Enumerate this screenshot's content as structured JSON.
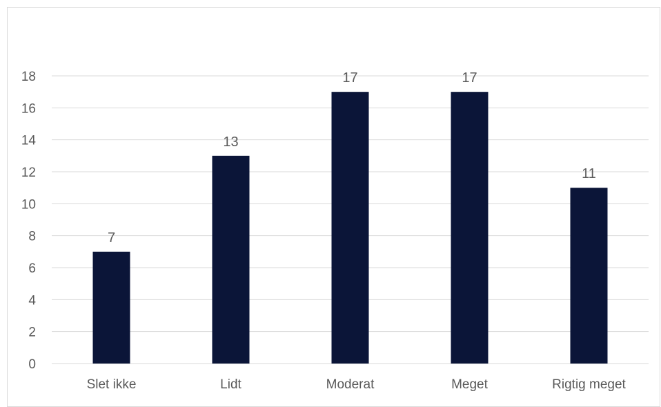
{
  "chart_data": {
    "type": "bar",
    "categories": [
      "Slet ikke",
      "Lidt",
      "Moderat",
      "Meget",
      "Rigtig meget"
    ],
    "values": [
      7,
      13,
      17,
      17,
      11
    ],
    "ylim": [
      0,
      18
    ],
    "yticks": [
      0,
      2,
      4,
      6,
      8,
      10,
      12,
      14,
      16,
      18
    ],
    "grid": true,
    "data_labels": true,
    "bar_color": "#0b1538",
    "grid_color": "#d9d9d9",
    "text_color": "#595959"
  }
}
